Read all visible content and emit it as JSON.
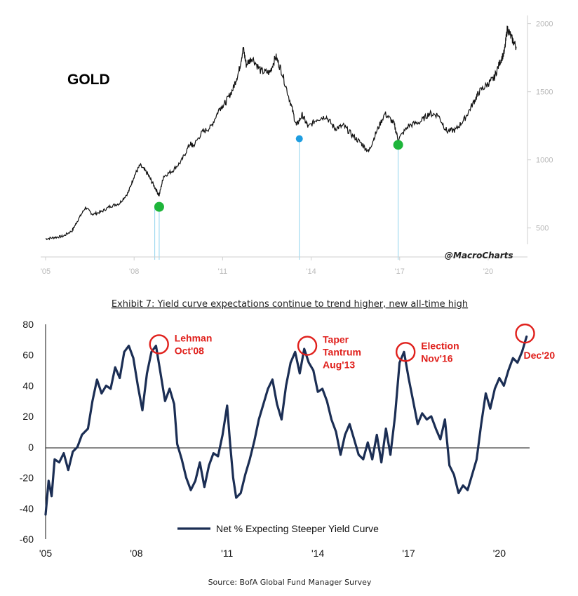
{
  "colors": {
    "gold_line": "#111111",
    "marker_green": "#1eb53a",
    "marker_blue": "#1e9de0",
    "yield_line": "#1b2e54",
    "annotation_red": "#e0201c",
    "top_axis_text": "#b9b9b9"
  },
  "top": {
    "asset_label": "GOLD",
    "watermark": "@MacroCharts"
  },
  "bottom": {
    "exhibit_title": "Exhibit 7: Yield curve expectations continue to trend higher, new all-time high",
    "source": "Source: BofA Global Fund Manager Survey"
  },
  "chart_data": [
    {
      "type": "line",
      "title": "GOLD",
      "xlabel": "",
      "ylabel": "",
      "xlim": [
        2005.0,
        2021.0
      ],
      "ylim": [
        380,
        2060
      ],
      "grid": false,
      "y_axis_side": "right",
      "x_ticks": [
        {
          "value": 2005,
          "label": "'05"
        },
        {
          "value": 2008,
          "label": "'08"
        },
        {
          "value": 2011,
          "label": "'11"
        },
        {
          "value": 2014,
          "label": "'14"
        },
        {
          "value": 2017,
          "label": "'17"
        },
        {
          "value": 2020,
          "label": "'20"
        }
      ],
      "y_ticks": [
        {
          "value": 500,
          "label": "500"
        },
        {
          "value": 1000,
          "label": "1000"
        },
        {
          "value": 1500,
          "label": "1500"
        },
        {
          "value": 2000,
          "label": "2000"
        }
      ],
      "series": [
        {
          "x": [
            2005.0,
            2005.3,
            2005.6,
            2005.9,
            2006.1,
            2006.35,
            2006.6,
            2006.9,
            2007.2,
            2007.5,
            2007.8,
            2008.0,
            2008.2,
            2008.45,
            2008.65,
            2008.85,
            2009.0,
            2009.3,
            2009.6,
            2009.9,
            2010.0,
            2010.3,
            2010.6,
            2010.9,
            2011.1,
            2011.35,
            2011.55,
            2011.7,
            2011.8,
            2012.0,
            2012.3,
            2012.6,
            2012.8,
            2013.0,
            2013.3,
            2013.5,
            2013.7,
            2013.9,
            2014.2,
            2014.5,
            2014.8,
            2015.1,
            2015.4,
            2015.7,
            2015.95,
            2016.2,
            2016.5,
            2016.8,
            2016.95,
            2017.3,
            2017.7,
            2018.0,
            2018.3,
            2018.6,
            2018.9,
            2019.2,
            2019.5,
            2019.7,
            2020.0,
            2020.2,
            2020.4,
            2020.55,
            2020.65,
            2020.8,
            2020.95
          ],
          "values": [
            420,
            430,
            440,
            480,
            560,
            650,
            600,
            620,
            660,
            680,
            760,
            880,
            960,
            900,
            820,
            740,
            880,
            920,
            990,
            1120,
            1100,
            1200,
            1240,
            1380,
            1420,
            1520,
            1650,
            1820,
            1700,
            1750,
            1650,
            1640,
            1760,
            1650,
            1420,
            1250,
            1330,
            1240,
            1300,
            1320,
            1230,
            1250,
            1180,
            1120,
            1060,
            1200,
            1340,
            1270,
            1150,
            1250,
            1280,
            1340,
            1330,
            1210,
            1220,
            1300,
            1420,
            1500,
            1560,
            1600,
            1720,
            1790,
            1970,
            1890,
            1830
          ]
        }
      ],
      "markers": [
        {
          "x": 2008.85,
          "y": 655,
          "color": "green"
        },
        {
          "x": 2013.6,
          "y": 1155,
          "color": "blue"
        },
        {
          "x": 2016.95,
          "y": 1110,
          "color": "green"
        }
      ],
      "vertical_lines": [
        2008.7,
        2008.85,
        2013.6,
        2016.95
      ]
    },
    {
      "type": "line",
      "title": "Exhibit 7: Yield curve expectations continue to trend higher, new all-time high",
      "xlabel": "",
      "ylabel": "",
      "xlim": [
        2005.0,
        2021.0
      ],
      "ylim": [
        -60,
        80
      ],
      "grid": false,
      "legend_position": "bottom-center",
      "x_ticks": [
        {
          "value": 2005,
          "label": "'05"
        },
        {
          "value": 2008,
          "label": "'08"
        },
        {
          "value": 2011,
          "label": "'11"
        },
        {
          "value": 2014,
          "label": "'14"
        },
        {
          "value": 2017,
          "label": "'17"
        },
        {
          "value": 2020,
          "label": "'20"
        }
      ],
      "y_ticks": [
        {
          "value": 80,
          "label": "80"
        },
        {
          "value": 60,
          "label": "60"
        },
        {
          "value": 40,
          "label": "40"
        },
        {
          "value": 20,
          "label": "20"
        },
        {
          "value": 0,
          "label": "0"
        },
        {
          "value": -20,
          "label": "-20"
        },
        {
          "value": -40,
          "label": "-40"
        },
        {
          "value": -60,
          "label": "-60"
        }
      ],
      "series": [
        {
          "name": "Net % Expecting Steeper Yield Curve",
          "x": [
            2005.0,
            2005.1,
            2005.2,
            2005.3,
            2005.45,
            2005.6,
            2005.75,
            2005.9,
            2006.05,
            2006.2,
            2006.4,
            2006.55,
            2006.7,
            2006.85,
            2007.0,
            2007.15,
            2007.3,
            2007.45,
            2007.6,
            2007.75,
            2007.9,
            2008.05,
            2008.2,
            2008.35,
            2008.5,
            2008.65,
            2008.8,
            2008.95,
            2009.1,
            2009.25,
            2009.35,
            2009.5,
            2009.65,
            2009.8,
            2009.95,
            2010.1,
            2010.25,
            2010.4,
            2010.55,
            2010.7,
            2010.85,
            2011.0,
            2011.1,
            2011.2,
            2011.3,
            2011.45,
            2011.6,
            2011.75,
            2011.9,
            2012.05,
            2012.2,
            2012.35,
            2012.5,
            2012.65,
            2012.8,
            2012.95,
            2013.1,
            2013.25,
            2013.4,
            2013.55,
            2013.7,
            2013.85,
            2014.0,
            2014.15,
            2014.3,
            2014.45,
            2014.6,
            2014.75,
            2014.9,
            2015.05,
            2015.2,
            2015.35,
            2015.5,
            2015.65,
            2015.8,
            2015.95,
            2016.1,
            2016.25,
            2016.4,
            2016.55,
            2016.7,
            2016.85,
            2017.0,
            2017.15,
            2017.3,
            2017.45,
            2017.6,
            2017.75,
            2017.9,
            2018.05,
            2018.2,
            2018.35,
            2018.5,
            2018.65,
            2018.8,
            2018.95,
            2019.1,
            2019.25,
            2019.4,
            2019.55,
            2019.7,
            2019.85,
            2020.0,
            2020.15,
            2020.3,
            2020.45,
            2020.6,
            2020.75,
            2020.9
          ],
          "values": [
            -44,
            -22,
            -32,
            -8,
            -10,
            -4,
            -15,
            -3,
            0,
            8,
            12,
            30,
            44,
            35,
            40,
            38,
            52,
            45,
            62,
            66,
            58,
            40,
            24,
            48,
            62,
            66,
            48,
            30,
            38,
            28,
            2,
            -8,
            -20,
            -28,
            -22,
            -10,
            -26,
            -12,
            -4,
            -6,
            8,
            27,
            2,
            -20,
            -33,
            -30,
            -18,
            -8,
            4,
            18,
            28,
            38,
            44,
            28,
            18,
            40,
            55,
            62,
            48,
            64,
            55,
            50,
            36,
            38,
            30,
            18,
            10,
            -5,
            8,
            15,
            5,
            -5,
            -8,
            3,
            -8,
            8,
            -10,
            12,
            -5,
            20,
            55,
            62,
            45,
            30,
            15,
            22,
            18,
            20,
            12,
            5,
            18,
            -12,
            -18,
            -30,
            -25,
            -28,
            -18,
            -8,
            15,
            35,
            25,
            38,
            45,
            40,
            50,
            58,
            55,
            62,
            72
          ]
        }
      ],
      "annotations": [
        {
          "x": 2008.75,
          "y": 67,
          "lines": [
            "Lehman",
            "Oct'08"
          ]
        },
        {
          "x": 2013.65,
          "y": 66,
          "lines": [
            "Taper",
            "Tantrum",
            "Aug'13"
          ]
        },
        {
          "x": 2016.9,
          "y": 62,
          "lines": [
            "Election",
            "Nov'16"
          ]
        },
        {
          "x": 2020.85,
          "y": 74,
          "lines": [
            "Dec'20"
          ]
        }
      ]
    }
  ]
}
